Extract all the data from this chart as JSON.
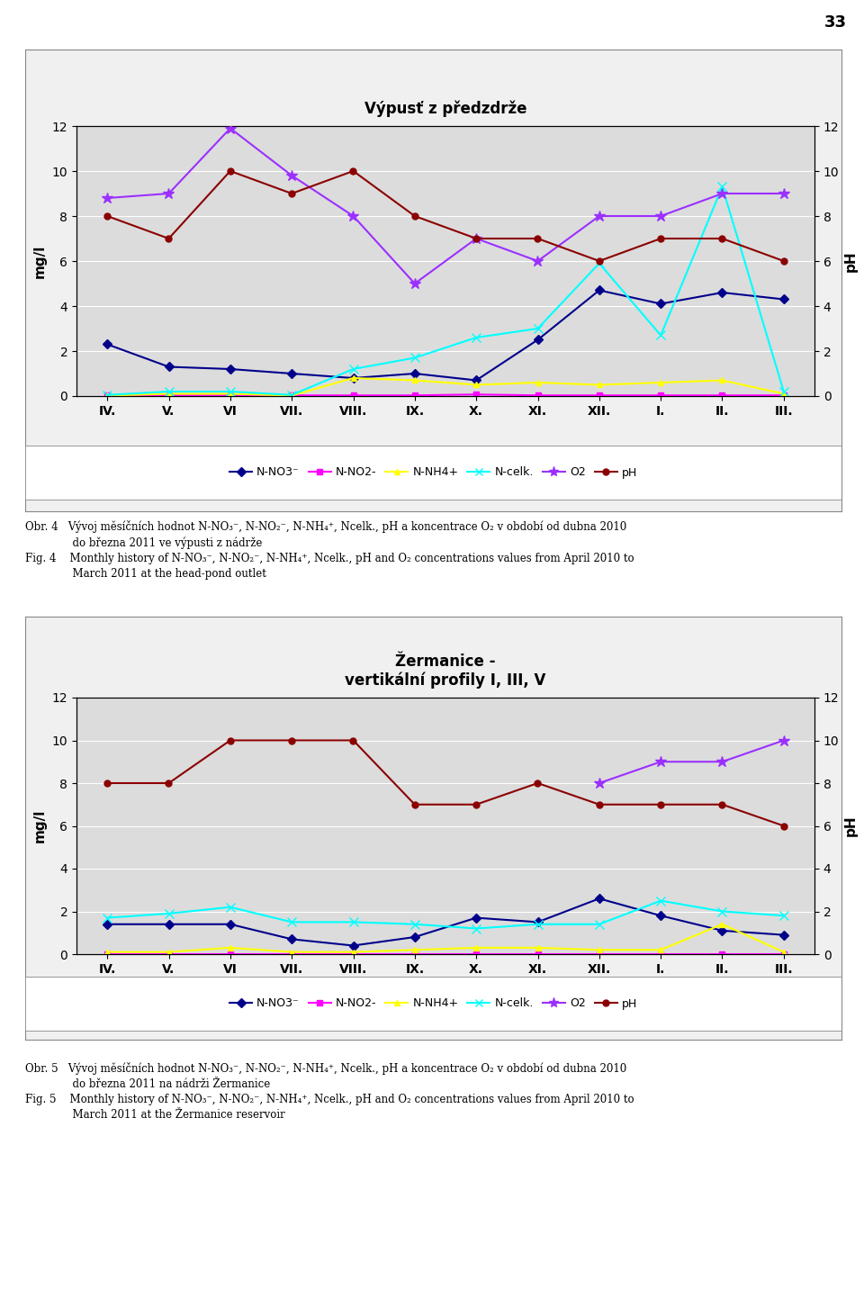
{
  "x_labels": [
    "IV.",
    "V.",
    "VI",
    "VII.",
    "VIII.",
    "IX.",
    "X.",
    "XI.",
    "XII.",
    "I.",
    "II.",
    "III."
  ],
  "chart1": {
    "title": "Výpusť z předzdrže",
    "nno3": [
      2.3,
      1.3,
      1.2,
      1.0,
      0.8,
      1.0,
      0.7,
      2.5,
      4.7,
      4.1,
      4.6,
      4.3
    ],
    "nno2": [
      0.03,
      0.03,
      0.03,
      0.03,
      0.03,
      0.03,
      0.07,
      0.03,
      0.03,
      0.03,
      0.03,
      0.03
    ],
    "nnh4": [
      0.02,
      0.1,
      0.1,
      0.02,
      0.8,
      0.7,
      0.5,
      0.6,
      0.5,
      0.6,
      0.7,
      0.1
    ],
    "ncelk": [
      0.05,
      0.2,
      0.2,
      0.05,
      1.2,
      1.7,
      2.6,
      3.0,
      5.9,
      2.7,
      9.3,
      0.2
    ],
    "o2": [
      8.8,
      9.0,
      11.9,
      9.8,
      8.0,
      5.0,
      7.0,
      6.0,
      8.0,
      8.0,
      9.0,
      9.0
    ],
    "ph": [
      8.0,
      7.0,
      10.0,
      9.0,
      10.0,
      8.0,
      7.0,
      7.0,
      6.0,
      7.0,
      7.0,
      6.0
    ]
  },
  "chart2": {
    "title": "Žermanice -\nvertikální profily I, III, V",
    "nno3": [
      1.4,
      1.4,
      1.4,
      0.7,
      0.4,
      0.8,
      1.7,
      1.5,
      2.6,
      1.8,
      1.1,
      0.9
    ],
    "nno2": [
      0.02,
      0.02,
      0.02,
      0.02,
      0.02,
      0.02,
      0.02,
      0.02,
      0.02,
      0.02,
      0.02,
      0.02
    ],
    "nnh4": [
      0.1,
      0.1,
      0.3,
      0.1,
      0.1,
      0.2,
      0.3,
      0.3,
      0.2,
      0.2,
      1.4,
      0.1
    ],
    "ncelk": [
      1.7,
      1.9,
      2.2,
      1.5,
      1.5,
      1.4,
      1.2,
      1.4,
      1.4,
      2.5,
      2.0,
      1.8
    ],
    "o2": [
      null,
      null,
      null,
      null,
      null,
      null,
      null,
      null,
      8.0,
      9.0,
      9.0,
      10.0
    ],
    "ph": [
      8.0,
      8.0,
      10.0,
      10.0,
      10.0,
      7.0,
      7.0,
      8.0,
      7.0,
      7.0,
      7.0,
      6.0
    ]
  },
  "colors": {
    "nno3": "#00008B",
    "nno2": "#FF00FF",
    "nnh4": "#FFFF00",
    "ncelk": "#00FFFF",
    "o2": "#9B30FF",
    "ph": "#8B0000"
  },
  "page_number": "33",
  "legend_labels": [
    "N-NO3⁻",
    "N-NO2-",
    "N-NH4+",
    "N-celk.",
    "O2",
    "pH"
  ],
  "caption1_line1": "Obr. 4   Vývoj měsíčních hodnot N-NO₃⁻, N-NO₂⁻, N-NH₄⁺, Ncelk., pH a koncentrace O₂ v období od dubna 2010",
  "caption1_line2": "              do března 2011 ve výpusti z nádrže",
  "caption1_line3": "Fig. 4    Monthly history of N-NO₃⁻, N-NO₂⁻, N-NH₄⁺, Ncelk., pH and O₂ concentrations values from April 2010 to",
  "caption1_line4": "              March 2011 at the head-pond outlet",
  "caption2_line1": "Obr. 5   Vývoj měsíčních hodnot N-NO₃⁻, N-NO₂⁻, N-NH₄⁺, Ncelk., pH a koncentrace O₂ v období od dubna 2010",
  "caption2_line2": "              do března 2011 na nádrži Žermanice",
  "caption2_line3": "Fig. 5    Monthly history of N-NO₃⁻, N-NO₂⁻, N-NH₄⁺, Ncelk., pH and O₂ concentrations values from April 2010 to",
  "caption2_line4": "              March 2011 at the Žermanice reservoir",
  "chart_bg": "#DCDCDC",
  "outer_bg": "#F0F0F0"
}
